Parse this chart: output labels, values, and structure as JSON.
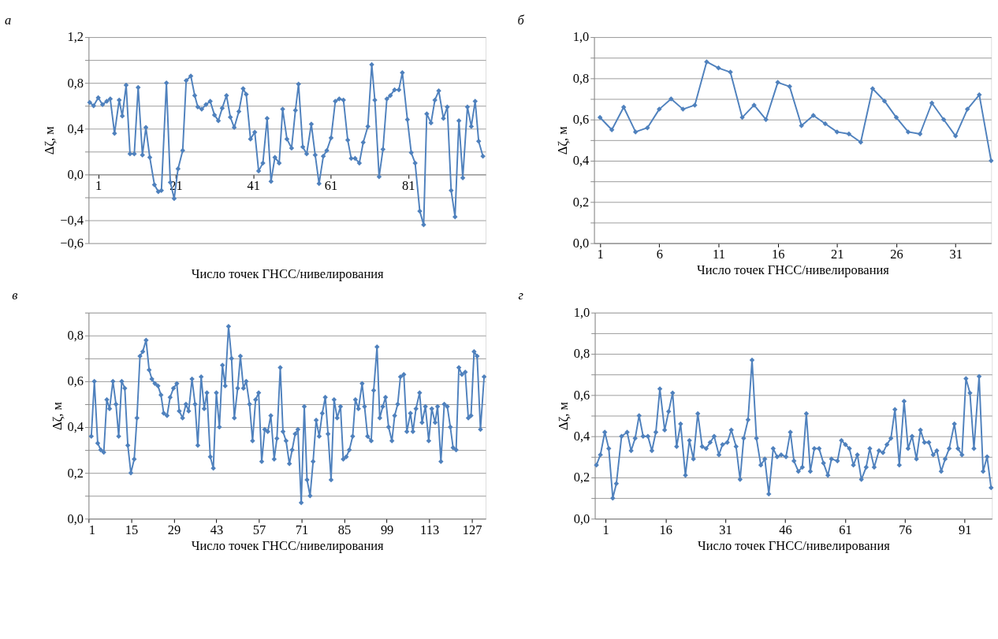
{
  "chart_data": [
    {
      "type": "line",
      "title": "а",
      "xlabel": "Число точек ГНСС/нивелирования",
      "ylabel": "Δζ, м",
      "grid": "y",
      "marker": "diamond",
      "line_style": "solid",
      "xlim": [
        -1.5,
        101
      ],
      "ylim": [
        -0.6,
        1.2
      ],
      "xticks": [
        1,
        21,
        41,
        61,
        81
      ],
      "yticks": [
        {
          "value": -0.6,
          "label": "−0,6"
        },
        {
          "value": -0.4,
          "label": "−0,4"
        },
        {
          "value": -0.2,
          "label": null
        },
        {
          "value": 0,
          "label": "0,0"
        },
        {
          "value": 0.2,
          "label": null
        },
        {
          "value": 0.4,
          "label": "0,4"
        },
        {
          "value": 0.6,
          "label": null
        },
        {
          "value": 0.8,
          "label": "0,8"
        },
        {
          "value": 1.0,
          "label": null
        },
        {
          "value": 1.2,
          "label": "1,2"
        }
      ],
      "x": [
        -1.2,
        -0.2,
        1,
        2.1,
        3.2,
        4.1,
        5.2,
        6.4,
        7.2,
        8.2,
        9.2,
        10.3,
        11.3,
        12.4,
        13.3,
        14.3,
        15.5,
        16.5,
        17.3,
        18.6,
        19.6,
        20.6,
        21.6,
        22.8,
        23.7,
        24.9,
        25.9,
        26.7,
        27.7,
        28.8,
        29.9,
        31.0,
        32.0,
        33.0,
        34.1,
        35.1,
        36.1,
        37.3,
        38.4,
        39.2,
        40.3,
        41.4,
        42.4,
        43.5,
        44.6,
        45.6,
        46.6,
        47.7,
        48.6,
        49.7,
        50.9,
        51.9,
        52.7,
        53.8,
        54.8,
        56.0,
        57.0,
        58.0,
        59.1,
        60.0,
        61.1,
        62.2,
        63.2,
        64.3,
        65.4,
        66.3,
        67.3,
        68.4,
        69.4,
        70.6,
        71.6,
        72.4,
        73.5,
        74.5,
        75.5,
        76.4,
        77.5,
        78.6,
        79.5,
        80.8,
        81.8,
        82.8,
        84.0,
        85.0,
        85.8,
        86.9,
        87.9,
        88.9,
        90.1,
        91.1,
        92.1,
        93.1,
        94.1,
        95.1,
        96.3,
        97.3,
        98.3,
        99.2,
        100.3
      ],
      "series": [
        {
          "color": "#4f81bd",
          "values": [
            0.63,
            0.6,
            0.67,
            0.61,
            0.64,
            0.66,
            0.36,
            0.65,
            0.51,
            0.78,
            0.18,
            0.18,
            0.76,
            0.17,
            0.41,
            0.15,
            -0.09,
            -0.15,
            -0.14,
            0.8,
            -0.07,
            -0.21,
            0.05,
            0.21,
            0.82,
            0.86,
            0.69,
            0.59,
            0.57,
            0.61,
            0.64,
            0.52,
            0.47,
            0.58,
            0.69,
            0.5,
            0.41,
            0.55,
            0.75,
            0.7,
            0.31,
            0.37,
            0.03,
            0.1,
            0.49,
            -0.06,
            0.15,
            0.1,
            0.57,
            0.31,
            0.23,
            0.56,
            0.79,
            0.24,
            0.18,
            0.44,
            0.17,
            -0.08,
            0.16,
            0.21,
            0.32,
            0.64,
            0.66,
            0.65,
            0.3,
            0.14,
            0.14,
            0.1,
            0.28,
            0.42,
            0.96,
            0.65,
            -0.02,
            0.22,
            0.66,
            0.69,
            0.74,
            0.74,
            0.89,
            0.48,
            0.19,
            0.1,
            -0.32,
            -0.44,
            0.53,
            0.45,
            0.65,
            0.73,
            0.49,
            0.59,
            -0.14,
            -0.37,
            0.47,
            -0.03,
            0.59,
            0.42,
            0.64,
            0.29,
            0.16
          ]
        }
      ]
    },
    {
      "type": "line",
      "title": "б",
      "xlabel": "Число точек ГНСС/нивелирования",
      "ylabel": "Δζ, м",
      "grid": "y",
      "marker": "diamond",
      "line_style": "solid",
      "xlim": [
        0.5,
        34
      ],
      "ylim": [
        0,
        1.0
      ],
      "xticks": [
        1,
        6,
        11,
        16,
        21,
        26,
        31
      ],
      "yticks": [
        {
          "value": 0,
          "label": "0,0"
        },
        {
          "value": 0.1,
          "label": null
        },
        {
          "value": 0.2,
          "label": "0,2"
        },
        {
          "value": 0.3,
          "label": null
        },
        {
          "value": 0.4,
          "label": "0,4"
        },
        {
          "value": 0.5,
          "label": null
        },
        {
          "value": 0.6,
          "label": "0,6"
        },
        {
          "value": 0.7,
          "label": null
        },
        {
          "value": 0.8,
          "label": "0,8"
        },
        {
          "value": 0.9,
          "label": null
        },
        {
          "value": 1.0,
          "label": "1,0"
        }
      ],
      "x": [
        1,
        2,
        3,
        4,
        5,
        6,
        7,
        8,
        9,
        10,
        11,
        12,
        13,
        14,
        15,
        16,
        17,
        18,
        19,
        20,
        21,
        22,
        23,
        24,
        25,
        26,
        27,
        28,
        29,
        30,
        31,
        32,
        33,
        34
      ],
      "series": [
        {
          "color": "#4f81bd",
          "values": [
            0.61,
            0.55,
            0.66,
            0.54,
            0.56,
            0.65,
            0.7,
            0.65,
            0.67,
            0.88,
            0.85,
            0.83,
            0.61,
            0.67,
            0.6,
            0.78,
            0.76,
            0.57,
            0.62,
            0.58,
            0.54,
            0.53,
            0.49,
            0.75,
            0.69,
            0.61,
            0.54,
            0.53,
            0.68,
            0.6,
            0.52,
            0.65,
            0.72,
            0.4
          ]
        }
      ]
    },
    {
      "type": "line",
      "title": "в",
      "xlabel": "Число точек ГНСС/нивелирования",
      "ylabel": "Δζ, м",
      "grid": "y",
      "marker": "diamond",
      "line_style": "solid",
      "xlim": [
        1,
        131.5
      ],
      "ylim": [
        0,
        0.9
      ],
      "xticks": [
        1,
        15,
        29,
        43,
        57,
        71,
        85,
        99,
        113,
        127
      ],
      "yticks": [
        {
          "value": 0,
          "label": "0,0"
        },
        {
          "value": 0.1,
          "label": null
        },
        {
          "value": 0.2,
          "label": "0,2"
        },
        {
          "value": 0.3,
          "label": null
        },
        {
          "value": 0.4,
          "label": "0,4"
        },
        {
          "value": 0.5,
          "label": null
        },
        {
          "value": 0.6,
          "label": "0,6"
        },
        {
          "value": 0.7,
          "label": null
        },
        {
          "value": 0.8,
          "label": "0,8"
        },
        {
          "value": 0.9,
          "label": null
        }
      ],
      "x": [
        1.9,
        2.9,
        4.0,
        5.0,
        6.0,
        7.0,
        7.9,
        9.0,
        10.0,
        10.9,
        11.9,
        12.9,
        13.9,
        14.9,
        16.0,
        16.9,
        17.9,
        18.8,
        19.9,
        20.9,
        21.8,
        22.8,
        23.8,
        24.8,
        25.7,
        26.8,
        27.8,
        28.9,
        30.0,
        30.8,
        31.9,
        33.0,
        33.9,
        35.0,
        36.0,
        36.9,
        38.0,
        39.0,
        39.9,
        41.0,
        42.0,
        43.0,
        44.0,
        45.0,
        45.9,
        47.0,
        48.0,
        48.9,
        50.0,
        50.9,
        51.9,
        52.8,
        53.9,
        54.9,
        55.9,
        56.9,
        57.9,
        58.9,
        59.9,
        60.9,
        62.0,
        62.9,
        64.0,
        64.9,
        65.9,
        67.0,
        67.9,
        68.9,
        69.8,
        70.9,
        71.9,
        72.8,
        73.8,
        74.8,
        75.8,
        76.8,
        77.8,
        78.8,
        79.7,
        80.7,
        81.7,
        82.7,
        83.8,
        84.7,
        85.7,
        86.7,
        87.8,
        88.7,
        89.7,
        90.9,
        91.7,
        92.7,
        93.9,
        94.7,
        95.8,
        96.7,
        97.7,
        98.6,
        99.6,
        100.7,
        101.6,
        102.6,
        103.5,
        104.6,
        105.6,
        106.8,
        107.6,
        108.6,
        109.8,
        110.6,
        111.7,
        112.8,
        113.8,
        114.9,
        115.7,
        116.8,
        117.9,
        118.9,
        119.9,
        120.8,
        121.8,
        122.7,
        123.7,
        124.8,
        125.8,
        126.7,
        127.7,
        128.7,
        129.8,
        131.0
      ],
      "series": [
        {
          "color": "#4f81bd",
          "values": [
            0.36,
            0.6,
            0.33,
            0.3,
            0.29,
            0.52,
            0.48,
            0.6,
            0.5,
            0.36,
            0.6,
            0.57,
            0.32,
            0.2,
            0.26,
            0.44,
            0.71,
            0.73,
            0.78,
            0.65,
            0.61,
            0.59,
            0.58,
            0.54,
            0.46,
            0.45,
            0.53,
            0.57,
            0.59,
            0.47,
            0.44,
            0.5,
            0.47,
            0.61,
            0.5,
            0.32,
            0.62,
            0.48,
            0.55,
            0.27,
            0.22,
            0.55,
            0.4,
            0.67,
            0.58,
            0.84,
            0.7,
            0.44,
            0.57,
            0.71,
            0.57,
            0.6,
            0.5,
            0.34,
            0.52,
            0.55,
            0.25,
            0.39,
            0.38,
            0.45,
            0.26,
            0.35,
            0.66,
            0.38,
            0.34,
            0.24,
            0.3,
            0.37,
            0.39,
            0.07,
            0.49,
            0.17,
            0.1,
            0.25,
            0.43,
            0.36,
            0.46,
            0.53,
            0.37,
            0.17,
            0.52,
            0.44,
            0.49,
            0.26,
            0.27,
            0.3,
            0.36,
            0.52,
            0.48,
            0.59,
            0.49,
            0.36,
            0.34,
            0.56,
            0.75,
            0.44,
            0.49,
            0.53,
            0.4,
            0.34,
            0.45,
            0.5,
            0.62,
            0.63,
            0.38,
            0.46,
            0.38,
            0.48,
            0.55,
            0.42,
            0.49,
            0.34,
            0.48,
            0.42,
            0.49,
            0.25,
            0.5,
            0.49,
            0.4,
            0.31,
            0.3,
            0.66,
            0.63,
            0.64,
            0.44,
            0.45,
            0.73,
            0.71,
            0.39,
            0.62
          ]
        }
      ]
    },
    {
      "type": "line",
      "title": "г",
      "xlabel": "Число точек ГНСС/нивелирования",
      "ylabel": "Δζ, м",
      "grid": "y",
      "marker": "diamond",
      "line_style": "solid",
      "xlim": [
        -1.7,
        97.8
      ],
      "ylim": [
        0,
        1.0
      ],
      "xticks": [
        1,
        16,
        31,
        46,
        61,
        76,
        91
      ],
      "yticks": [
        {
          "value": 0,
          "label": "0,0"
        },
        {
          "value": 0.1,
          "label": null
        },
        {
          "value": 0.2,
          "label": "0,2"
        },
        {
          "value": 0.3,
          "label": null
        },
        {
          "value": 0.4,
          "label": "0,4"
        },
        {
          "value": 0.5,
          "label": null
        },
        {
          "value": 0.6,
          "label": "0,6"
        },
        {
          "value": 0.7,
          "label": null
        },
        {
          "value": 0.8,
          "label": "0,8"
        },
        {
          "value": 0.9,
          "label": null
        },
        {
          "value": 1.0,
          "label": "1,0"
        }
      ],
      "x": [
        -1.3,
        -0.3,
        0.8,
        1.8,
        2.8,
        3.7,
        5.0,
        6.4,
        7.4,
        8.4,
        9.4,
        10.4,
        11.6,
        12.6,
        13.6,
        14.6,
        15.8,
        16.8,
        17.8,
        18.8,
        19.8,
        21.0,
        22.0,
        23.0,
        24.1,
        25.2,
        26.2,
        27.2,
        28.2,
        29.4,
        30.3,
        31.5,
        32.5,
        33.7,
        34.7,
        35.6,
        36.7,
        37.7,
        38.8,
        39.9,
        40.9,
        41.9,
        43.0,
        44.0,
        45.0,
        46.2,
        47.3,
        48.2,
        49.3,
        50.3,
        51.3,
        52.3,
        53.3,
        54.5,
        55.6,
        56.7,
        57.6,
        59.1,
        60.1,
        61.1,
        62.1,
        63.1,
        64.1,
        65.1,
        66.3,
        67.2,
        68.3,
        69.5,
        70.5,
        71.5,
        72.5,
        73.5,
        74.6,
        75.8,
        76.8,
        77.8,
        78.9,
        79.9,
        80.9,
        82.0,
        83.1,
        84.0,
        85.1,
        86.1,
        87.1,
        88.4,
        89.3,
        90.3,
        91.3,
        92.3,
        93.3,
        94.6,
        95.6,
        96.6,
        97.6
      ],
      "series": [
        {
          "color": "#4f81bd",
          "values": [
            0.26,
            0.31,
            0.42,
            0.34,
            0.1,
            0.17,
            0.4,
            0.42,
            0.33,
            0.39,
            0.5,
            0.4,
            0.4,
            0.33,
            0.42,
            0.63,
            0.43,
            0.52,
            0.61,
            0.35,
            0.46,
            0.21,
            0.38,
            0.29,
            0.51,
            0.35,
            0.34,
            0.37,
            0.4,
            0.31,
            0.36,
            0.37,
            0.43,
            0.35,
            0.19,
            0.39,
            0.48,
            0.77,
            0.39,
            0.26,
            0.29,
            0.12,
            0.34,
            0.3,
            0.31,
            0.3,
            0.42,
            0.28,
            0.23,
            0.25,
            0.51,
            0.23,
            0.34,
            0.34,
            0.27,
            0.21,
            0.29,
            0.28,
            0.38,
            0.36,
            0.34,
            0.26,
            0.31,
            0.19,
            0.25,
            0.34,
            0.25,
            0.33,
            0.32,
            0.36,
            0.39,
            0.53,
            0.26,
            0.57,
            0.34,
            0.4,
            0.29,
            0.43,
            0.37,
            0.37,
            0.31,
            0.33,
            0.23,
            0.29,
            0.34,
            0.46,
            0.34,
            0.31,
            0.68,
            0.61,
            0.34,
            0.69,
            0.23,
            0.3,
            0.15
          ]
        }
      ]
    }
  ]
}
